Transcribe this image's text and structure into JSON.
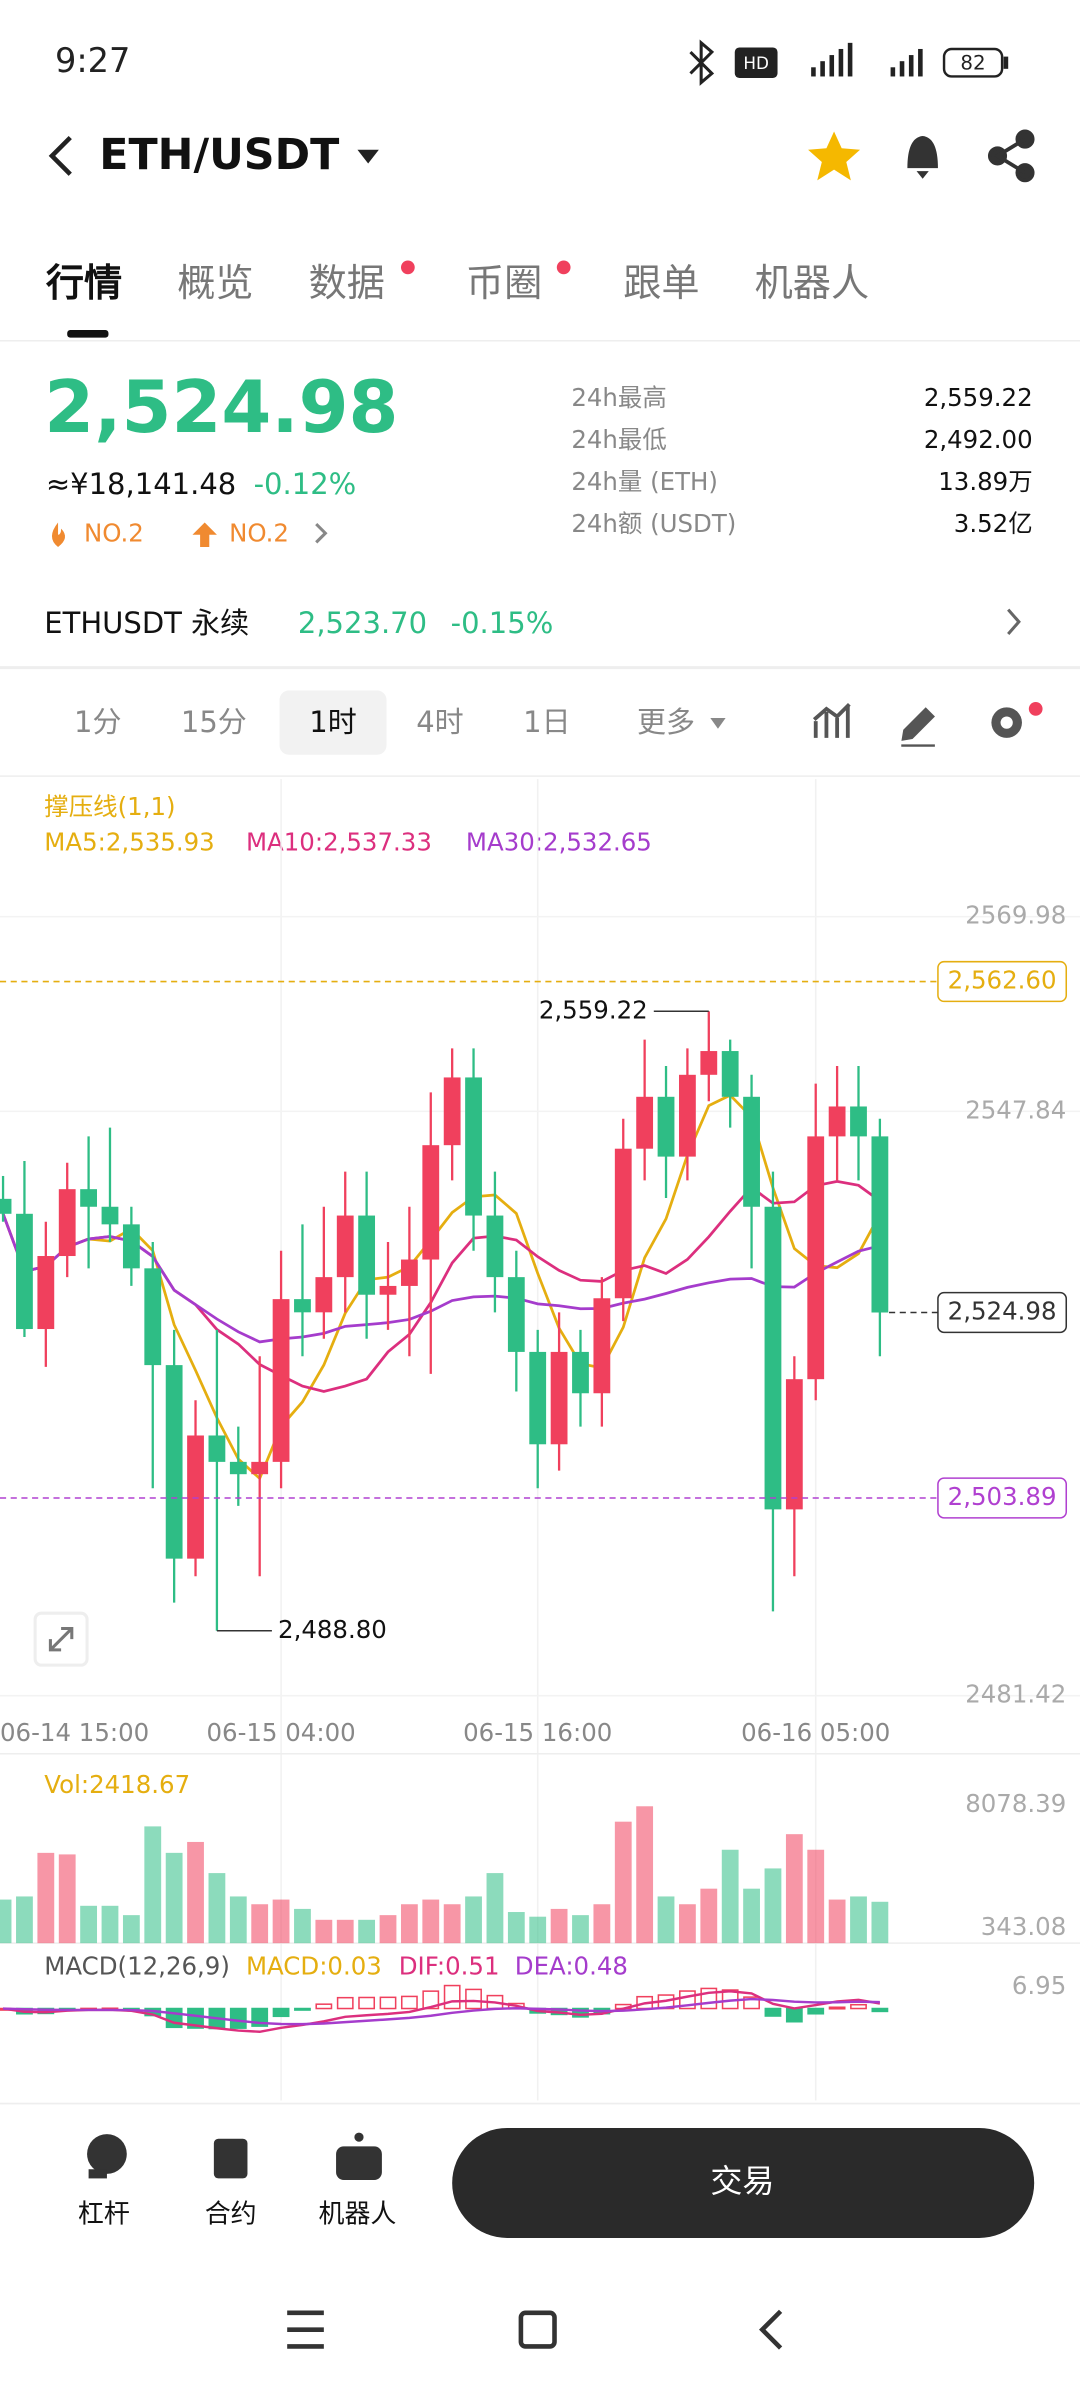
{
  "status_bar": {
    "time": "9:27",
    "battery": "82"
  },
  "header": {
    "title": "ETH/USDT"
  },
  "tabs": [
    "行情",
    "概览",
    "数据",
    "币圈",
    "跟单",
    "机器人"
  ],
  "ticker": {
    "price": "2,524.98",
    "cny": "≈¥18,141.48",
    "change": "-0.12%",
    "hot_rank": "NO.2",
    "rise_rank": "NO.2",
    "stats": [
      {
        "label": "24h最高",
        "value": "2,559.22"
      },
      {
        "label": "24h最低",
        "value": "2,492.00"
      },
      {
        "label": "24h量 (ETH)",
        "value": "13.89万"
      },
      {
        "label": "24h额 (USDT)",
        "value": "3.52亿"
      }
    ]
  },
  "perpetual": {
    "name": "ETHUSDT 永续",
    "price": "2,523.70",
    "change": "-0.15%"
  },
  "intervals": [
    "1分",
    "15分",
    "1时",
    "4时",
    "1日",
    "更多"
  ],
  "chart_data": {
    "type": "candlestick",
    "indicator": "撑压线(1,1)",
    "ma_labels": [
      {
        "label": "MA5:2,535.93",
        "color": "#e5ae10"
      },
      {
        "label": "MA10:2,537.33",
        "color": "#dc2f7e"
      },
      {
        "label": "MA30:2,532.65",
        "color": "#a53ccc"
      }
    ],
    "categories": [
      "06-14 15:00",
      null,
      null,
      null,
      null,
      null,
      null,
      null,
      null,
      null,
      null,
      null,
      null,
      "06-15 04:00",
      null,
      null,
      null,
      null,
      null,
      null,
      null,
      null,
      null,
      null,
      null,
      "06-15 16:00",
      null,
      null,
      null,
      null,
      null,
      null,
      null,
      null,
      null,
      null,
      null,
      null,
      "06-16 05:00",
      null,
      null,
      null
    ],
    "open": [
      2537.9,
      2536.2,
      2523.1,
      2531.4,
      2539,
      2537,
      2535,
      2530,
      2519,
      2497,
      2511,
      2508,
      2506.6,
      2508,
      2526.5,
      2525,
      2529,
      2536,
      2527,
      2528,
      2531,
      2544,
      2551.7,
      2536,
      2529,
      2520.5,
      2510,
      2520.5,
      2515.8,
      2526.6,
      2543.6,
      2549.5,
      2542.7,
      2552,
      2554.7,
      2549.5,
      2537,
      2502.6,
      2517.4,
      2545,
      2548.4,
      2545
    ],
    "high": [
      2540.5,
      2542.2,
      2535.3,
      2542,
      2545,
      2546,
      2537,
      2533,
      2523,
      2515,
      2523,
      2512,
      2520,
      2532,
      2535,
      2537,
      2541,
      2541,
      2533,
      2537,
      2550,
      2555,
      2555,
      2541,
      2532,
      2523,
      2525,
      2523,
      2529,
      2547,
      2556,
      2553,
      2555,
      2559.22,
      2556,
      2552,
      2541,
      2520,
      2551,
      2553,
      2553,
      2547
    ],
    "low": [
      2535.3,
      2522.2,
      2518.8,
      2529,
      2530,
      2533,
      2528,
      2505,
      2492,
      2495,
      2488.8,
      2503,
      2495,
      2505,
      2520,
      2522,
      2525,
      2522,
      2523,
      2520,
      2518,
      2540,
      2532,
      2525,
      2516,
      2505,
      2507,
      2512,
      2512,
      2524,
      2540,
      2538,
      2540,
      2549,
      2546,
      2530,
      2491,
      2495,
      2515,
      2540,
      2540,
      2520
    ],
    "close": [
      2536.2,
      2523.1,
      2531.4,
      2539,
      2537,
      2535,
      2530,
      2519,
      2497,
      2511,
      2508,
      2506.6,
      2508,
      2526.5,
      2525,
      2529,
      2536,
      2527,
      2528,
      2531,
      2544,
      2551.7,
      2536,
      2529,
      2520.5,
      2510,
      2520.5,
      2515.8,
      2526.6,
      2543.6,
      2549.5,
      2542.7,
      2552,
      2554.7,
      2549.5,
      2537,
      2502.6,
      2517.4,
      2545,
      2548.4,
      2545,
      2524.98
    ],
    "up_color": "#f0405d",
    "down_color": "#2ebd85",
    "ylim": [
      2481.42,
      2569.98
    ],
    "yticks": [
      2481.42,
      2547.84,
      2569.98
    ],
    "grid": true,
    "levels": [
      {
        "value": 2562.6,
        "label": "2,562.60",
        "color": "#e5ae10",
        "full_line": true
      },
      {
        "value": 2503.89,
        "label": "2,503.89",
        "color": "#b040d0",
        "full_line": true
      },
      {
        "value": 2524.98,
        "label": "2,524.98",
        "color": "#333333",
        "full_line": false
      }
    ],
    "extremes": [
      {
        "value": 2559.22,
        "label": "2,559.22"
      },
      {
        "value": 2488.8,
        "label": "2,488.80"
      }
    ],
    "volume": {
      "label": "Vol:2418.67",
      "values": [
        2548,
        2730,
        5278,
        5187,
        2184,
        2184,
        1638,
        6825,
        5278,
        5915,
        4095,
        2730,
        2275,
        2548,
        2002,
        1365,
        1365,
        1365,
        1638,
        2275,
        2548,
        2275,
        2730,
        4095,
        1820,
        1547,
        2002,
        1638,
        2275,
        7100,
        8000,
        2730,
        2275,
        3185,
        5460,
        3185,
        4368,
        6370,
        5460,
        2548,
        2730,
        2418.67
      ],
      "ylim": [
        0,
        11070
      ],
      "yticks": [
        343.08,
        8078.39
      ]
    },
    "macd": {
      "labels": [
        {
          "label": "MACD(12,26,9)",
          "color": "#555555"
        },
        {
          "label": "MACD:0.03",
          "color": "#e5ae10"
        },
        {
          "label": "DIF:0.51",
          "color": "#dc2f7e"
        },
        {
          "label": "DEA:0.48",
          "color": "#a53ccc"
        }
      ],
      "ylim": [
        -29.5,
        19
      ],
      "yticks": [
        6.95
      ]
    }
  },
  "bottom_bar": {
    "items": [
      "杠杆",
      "合约",
      "机器人"
    ],
    "trade_button": "交易"
  }
}
